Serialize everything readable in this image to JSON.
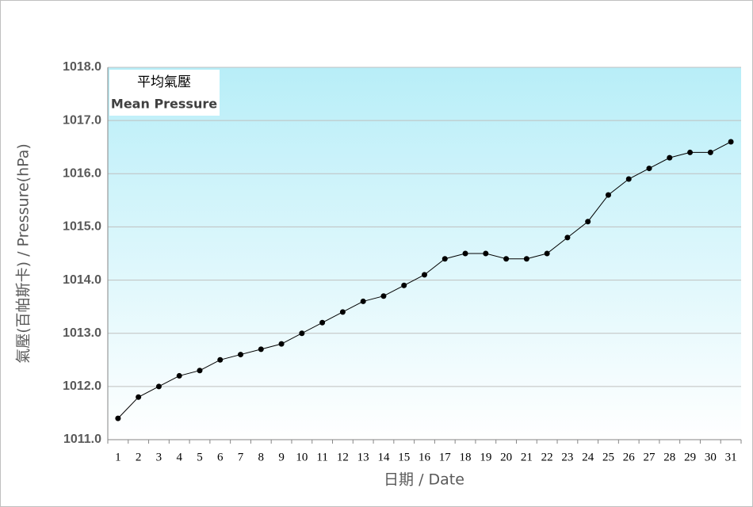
{
  "chart_data": {
    "type": "line",
    "title": "平均氣壓",
    "subtitle": "Mean Pressure",
    "x_label": "日期 / Date",
    "y_label": "氣壓(百帕斯卡) / Pressure(hPa)",
    "categories": [
      "1",
      "2",
      "3",
      "4",
      "5",
      "6",
      "7",
      "8",
      "9",
      "10",
      "11",
      "12",
      "13",
      "14",
      "15",
      "16",
      "17",
      "18",
      "19",
      "20",
      "21",
      "22",
      "23",
      "24",
      "25",
      "26",
      "27",
      "28",
      "29",
      "30",
      "31"
    ],
    "series": [
      {
        "name": "Mean Pressure",
        "color": "#000000",
        "values": [
          1011.4,
          1011.8,
          1012.0,
          1012.2,
          1012.3,
          1012.5,
          1012.6,
          1012.7,
          1012.8,
          1013.0,
          1013.2,
          1013.4,
          1013.6,
          1013.7,
          1013.9,
          1014.1,
          1014.4,
          1014.5,
          1014.5,
          1014.4,
          1014.4,
          1014.5,
          1014.8,
          1015.1,
          1015.6,
          1015.9,
          1016.1,
          1016.3,
          1016.4,
          1016.4,
          1016.6
        ]
      }
    ],
    "ylim": [
      1011,
      1018
    ],
    "yticks": [
      {
        "value": 1011,
        "label": "1011.0"
      },
      {
        "value": 1012,
        "label": "1012.0"
      },
      {
        "value": 1013,
        "label": "1013.0"
      },
      {
        "value": 1014,
        "label": "1014.0"
      },
      {
        "value": 1015,
        "label": "1015.0"
      },
      {
        "value": 1016,
        "label": "1016.0"
      },
      {
        "value": 1017,
        "label": "1017.0"
      },
      {
        "value": 1018,
        "label": "1018.0"
      }
    ],
    "grid": true
  }
}
